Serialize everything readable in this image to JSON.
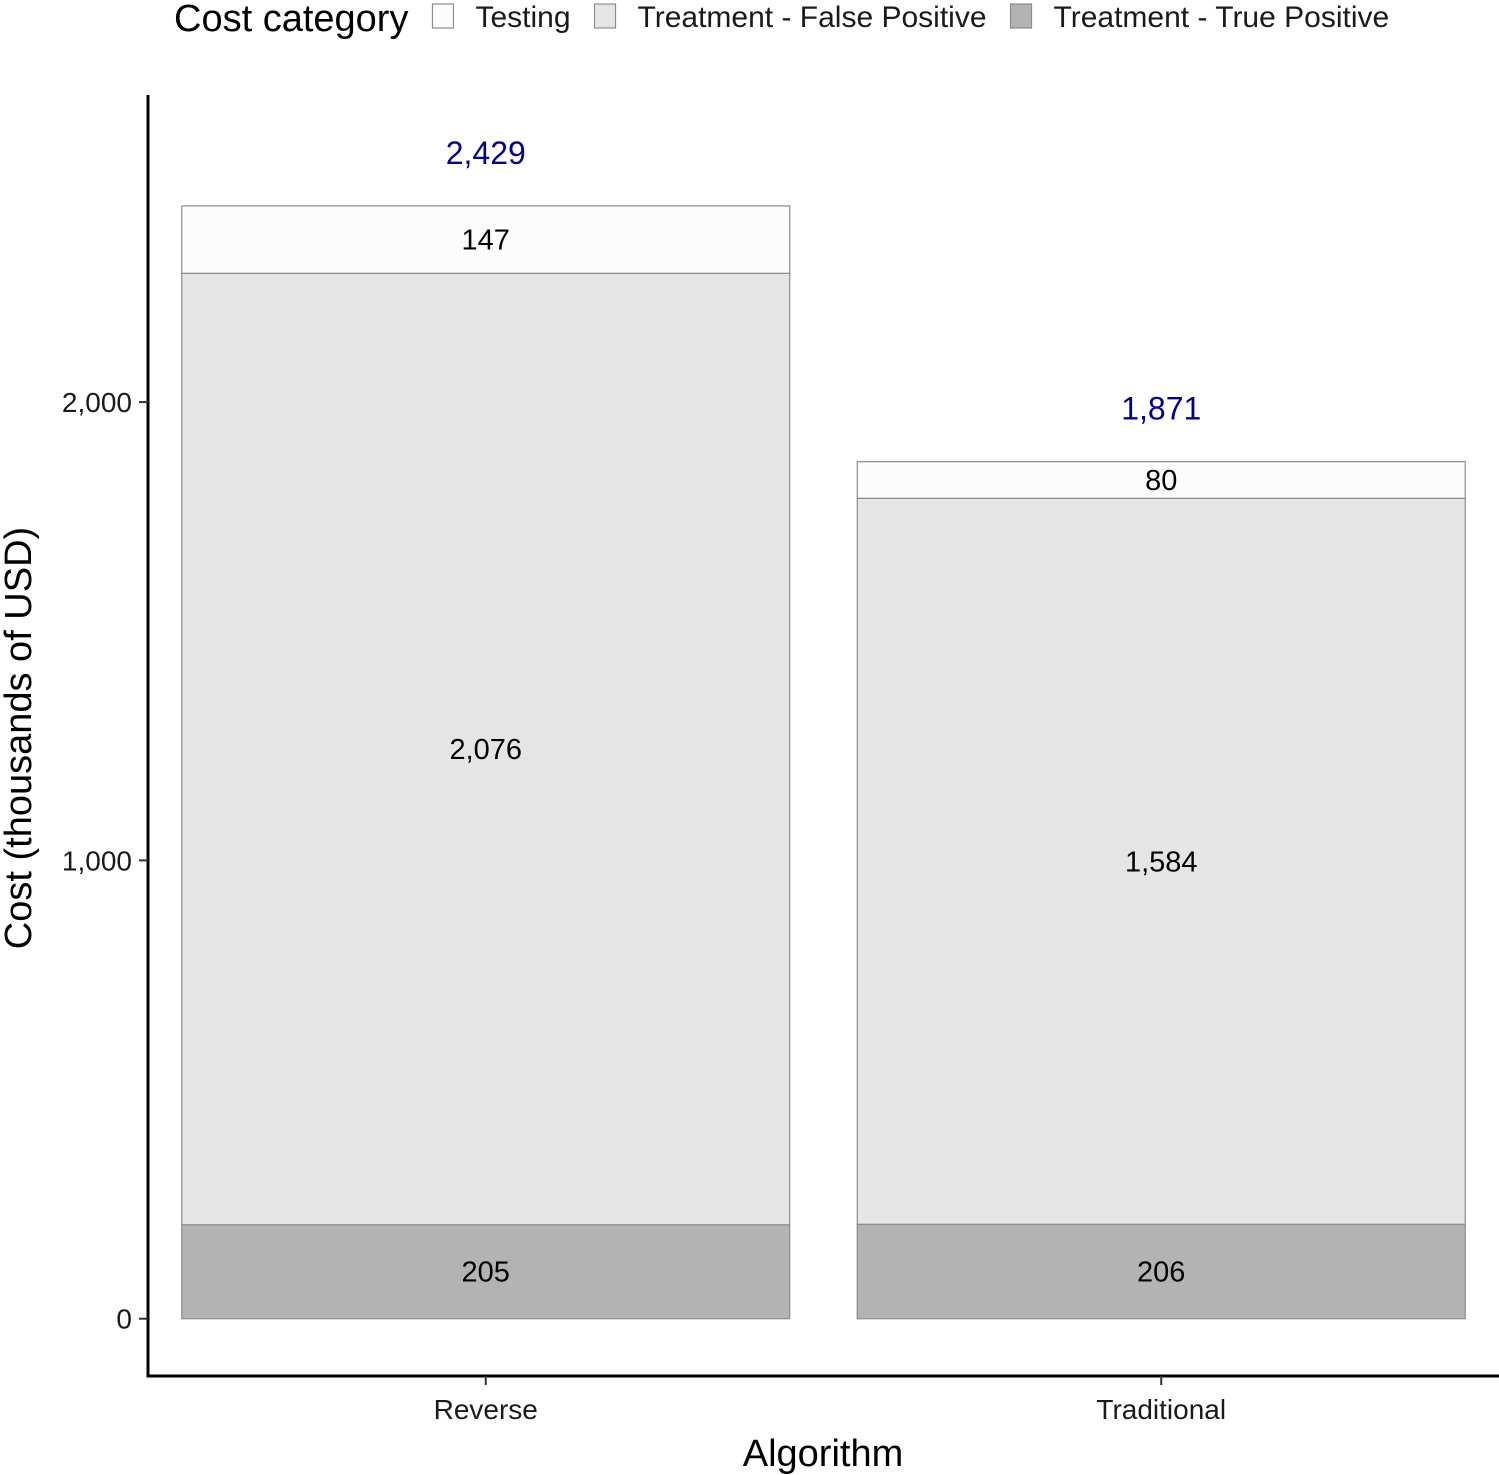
{
  "chart_data": {
    "type": "bar",
    "stacked": true,
    "categories": [
      "Reverse",
      "Traditional"
    ],
    "series": [
      {
        "name": "Treatment - True Positive",
        "values": [
          205,
          206
        ],
        "labels": [
          "205",
          "206"
        ],
        "color": "#b3b3b3"
      },
      {
        "name": "Treatment - False Positive",
        "values": [
          2076,
          1584
        ],
        "labels": [
          "2,076",
          "1,584"
        ],
        "color": "#e5e5e5"
      },
      {
        "name": "Testing",
        "values": [
          147,
          80
        ],
        "labels": [
          "147",
          "80"
        ],
        "color": "#fcfcfc"
      }
    ],
    "totals": [
      2429,
      1871
    ],
    "total_labels": [
      "2,429",
      "1,871"
    ],
    "total_label_color": "#00008b",
    "xlabel": "Algorithm",
    "ylabel": "Cost (thousands of USD)",
    "ylim": [
      -125,
      2670
    ],
    "yticks": [
      0,
      1000,
      2000
    ],
    "ytick_labels": [
      "0",
      "1,000",
      "2,000"
    ],
    "grid": false,
    "legend": {
      "title": "Cost category",
      "position": "top",
      "entries": [
        {
          "label": "Testing",
          "color": "#fcfcfc"
        },
        {
          "label": "Treatment - False Positive",
          "color": "#e5e5e5"
        },
        {
          "label": "Treatment - True Positive",
          "color": "#b3b3b3"
        }
      ]
    }
  }
}
